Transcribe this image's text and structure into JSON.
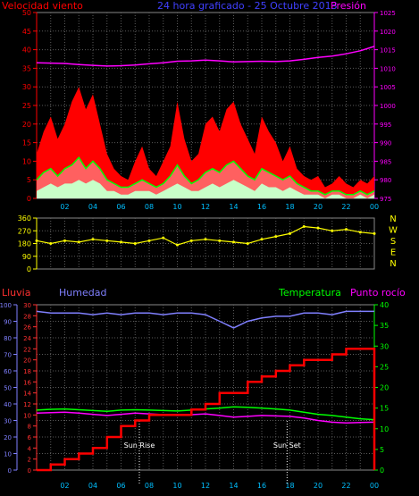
{
  "chart_data": [
    {
      "type": "line",
      "header": {
        "title": "24 hora graficado - 25 Octubre 2013",
        "left_label": "Velocidad viento",
        "right_label": "Presión"
      },
      "x_ticks": [
        "02",
        "04",
        "06",
        "08",
        "10",
        "12",
        "14",
        "16",
        "18",
        "20",
        "22",
        "00"
      ],
      "x_range": [
        0,
        24
      ],
      "y_left": {
        "range": [
          0,
          50
        ],
        "ticks": [
          0,
          5,
          10,
          15,
          20,
          25,
          30,
          35,
          40,
          45,
          50
        ]
      },
      "y_right": {
        "range": [
          975,
          1025
        ],
        "ticks": [
          975,
          980,
          985,
          990,
          995,
          1000,
          1005,
          1010,
          1015,
          1020,
          1025
        ]
      },
      "colors": {
        "gust": "#ff0000",
        "average": "#00ff00",
        "minimum": "#c8ffc8",
        "pressure": "#ff00ff",
        "lull": "#000000"
      },
      "grid": true,
      "series": [
        {
          "key": "pressure",
          "x": [
            0,
            1,
            2,
            3,
            4,
            5,
            6,
            7,
            8,
            9,
            10,
            11,
            12,
            13,
            14,
            15,
            16,
            17,
            18,
            19,
            20,
            21,
            22,
            23,
            24
          ],
          "values": [
            1011.5,
            1011.4,
            1011.3,
            1011.0,
            1010.8,
            1010.6,
            1010.7,
            1010.9,
            1011.2,
            1011.5,
            1011.9,
            1012.0,
            1012.2,
            1012.0,
            1011.7,
            1011.8,
            1011.9,
            1011.8,
            1012.0,
            1012.4,
            1012.9,
            1013.3,
            1013.9,
            1014.7,
            1015.9
          ]
        },
        {
          "key": "gust",
          "x": [
            0,
            0.5,
            1,
            1.5,
            2,
            2.5,
            3,
            3.5,
            4,
            4.5,
            5,
            5.5,
            6,
            6.5,
            7,
            7.5,
            8,
            8.5,
            9,
            9.5,
            10,
            10.5,
            11,
            11.5,
            12,
            12.5,
            13,
            13.5,
            14,
            14.5,
            15,
            15.5,
            16,
            16.5,
            17,
            17.5,
            18,
            18.5,
            19,
            19.5,
            20,
            20.5,
            21,
            21.5,
            22,
            22.5,
            23,
            23.5,
            24
          ],
          "values": [
            12,
            18,
            22,
            16,
            20,
            26,
            30,
            24,
            28,
            20,
            12,
            8,
            6,
            5,
            10,
            14,
            8,
            6,
            10,
            14,
            26,
            16,
            10,
            12,
            20,
            22,
            18,
            24,
            26,
            20,
            16,
            12,
            22,
            18,
            15,
            10,
            14,
            8,
            6,
            5,
            6,
            3,
            4,
            6,
            4,
            3,
            5,
            4,
            6
          ]
        },
        {
          "key": "average",
          "x": [
            0,
            0.5,
            1,
            1.5,
            2,
            2.5,
            3,
            3.5,
            4,
            4.5,
            5,
            5.5,
            6,
            6.5,
            7,
            7.5,
            8,
            8.5,
            9,
            9.5,
            10,
            10.5,
            11,
            11.5,
            12,
            12.5,
            13,
            13.5,
            14,
            14.5,
            15,
            15.5,
            16,
            16.5,
            17,
            17.5,
            18,
            18.5,
            19,
            19.5,
            20,
            20.5,
            21,
            21.5,
            22,
            22.5,
            23,
            23.5,
            24
          ],
          "values": [
            5,
            7,
            8,
            6,
            8,
            9,
            11,
            8,
            10,
            8,
            5,
            4,
            3,
            3,
            4,
            5,
            4,
            3,
            4,
            6,
            9,
            6,
            4,
            5,
            7,
            8,
            7,
            9,
            10,
            8,
            6,
            5,
            8,
            7,
            6,
            5,
            6,
            4,
            3,
            2,
            2,
            1,
            2,
            2,
            1,
            1,
            2,
            1,
            2
          ]
        },
        {
          "key": "minimum",
          "x": [
            0,
            0.5,
            1,
            1.5,
            2,
            2.5,
            3,
            3.5,
            4,
            4.5,
            5,
            5.5,
            6,
            6.5,
            7,
            7.5,
            8,
            8.5,
            9,
            9.5,
            10,
            10.5,
            11,
            11.5,
            12,
            12.5,
            13,
            13.5,
            14,
            14.5,
            15,
            15.5,
            16,
            16.5,
            17,
            17.5,
            18,
            18.5,
            19,
            19.5,
            20,
            20.5,
            21,
            21.5,
            22,
            22.5,
            23,
            23.5,
            24
          ],
          "values": [
            2,
            3,
            4,
            3,
            4,
            4,
            5,
            4,
            5,
            4,
            2,
            2,
            1,
            1,
            2,
            2,
            2,
            1,
            2,
            3,
            4,
            3,
            2,
            2,
            3,
            4,
            3,
            4,
            5,
            4,
            3,
            2,
            4,
            3,
            3,
            2,
            3,
            2,
            1,
            1,
            1,
            0,
            1,
            1,
            0,
            0,
            1,
            0,
            1
          ]
        }
      ]
    },
    {
      "type": "scatter",
      "x_range": [
        0,
        24
      ],
      "y_range": [
        0,
        360
      ],
      "y_ticks": [
        0,
        90,
        180,
        270,
        360
      ],
      "compass_labels": [
        "N",
        "W",
        "S",
        "E",
        "N"
      ],
      "colors": {
        "direction": "#ffff00"
      },
      "grid": true,
      "series": [
        {
          "key": "direction",
          "x": [
            0,
            1,
            2,
            3,
            4,
            5,
            6,
            7,
            8,
            9,
            10,
            11,
            12,
            13,
            14,
            15,
            16,
            17,
            18,
            19,
            20,
            21,
            22,
            23,
            24
          ],
          "values": [
            200,
            180,
            200,
            190,
            210,
            200,
            190,
            180,
            200,
            220,
            170,
            200,
            210,
            200,
            190,
            180,
            210,
            230,
            250,
            300,
            290,
            270,
            280,
            260,
            250
          ]
        }
      ]
    },
    {
      "type": "line",
      "header": {
        "rain_label": "Lluvia",
        "humidity_label": "Humedad",
        "temperature_label": "Temperatura",
        "dewpoint_label": "Punto rocío"
      },
      "x_ticks": [
        "02",
        "04",
        "06",
        "08",
        "10",
        "12",
        "14",
        "16",
        "18",
        "20",
        "22",
        "00"
      ],
      "x_range": [
        0,
        24
      ],
      "y_left_outer": {
        "range": [
          0,
          100
        ],
        "ticks": [
          0,
          10,
          20,
          30,
          40,
          50,
          60,
          70,
          80,
          90,
          100
        ]
      },
      "y_left_inner": {
        "range": [
          0,
          30
        ],
        "ticks": [
          0,
          2,
          4,
          6,
          8,
          10,
          12,
          14,
          16,
          18,
          20,
          22,
          24,
          26,
          28,
          30
        ]
      },
      "y_right": {
        "range": [
          0,
          40
        ],
        "ticks": [
          0,
          5,
          10,
          15,
          20,
          25,
          30,
          35,
          40
        ]
      },
      "annotations": [
        {
          "text": "Sun Rise",
          "x": 7.3
        },
        {
          "text": "Sun Set",
          "x": 17.8
        }
      ],
      "colors": {
        "rain": "#ff0000",
        "humidity": "#8080ff",
        "temperature": "#00ff00",
        "dewpoint": "#ff00ff"
      },
      "grid": true,
      "series": [
        {
          "key": "humidity",
          "x": [
            0,
            1,
            2,
            3,
            4,
            5,
            6,
            7,
            8,
            9,
            10,
            11,
            12,
            13,
            14,
            15,
            16,
            17,
            18,
            19,
            20,
            21,
            22,
            23,
            24
          ],
          "values": [
            96,
            95,
            95,
            95,
            94,
            95,
            94,
            95,
            95,
            94,
            95,
            95,
            94,
            90,
            86,
            90,
            92,
            93,
            93,
            95,
            95,
            94,
            96,
            96,
            96
          ]
        },
        {
          "key": "temperature",
          "x": [
            0,
            1,
            2,
            3,
            4,
            5,
            6,
            7,
            8,
            9,
            10,
            11,
            12,
            13,
            14,
            15,
            16,
            17,
            18,
            19,
            20,
            21,
            22,
            23,
            24
          ],
          "values": [
            14.5,
            14.7,
            14.8,
            14.6,
            14.4,
            14.2,
            14.5,
            14.6,
            14.5,
            14.4,
            14.3,
            14.5,
            14.8,
            15.0,
            15.3,
            15.2,
            15.0,
            14.8,
            14.5,
            14.0,
            13.5,
            13.2,
            12.8,
            12.4,
            12.2
          ]
        },
        {
          "key": "dewpoint",
          "x": [
            0,
            1,
            2,
            3,
            4,
            5,
            6,
            7,
            8,
            9,
            10,
            11,
            12,
            13,
            14,
            15,
            16,
            17,
            18,
            19,
            20,
            21,
            22,
            23,
            24
          ],
          "values": [
            13.8,
            13.9,
            14.0,
            13.8,
            13.5,
            13.2,
            13.5,
            13.8,
            13.6,
            13.4,
            13.2,
            13.4,
            13.6,
            13.2,
            12.8,
            13.0,
            13.2,
            13.1,
            13.0,
            12.6,
            12.0,
            11.6,
            11.4,
            11.5,
            11.6
          ]
        },
        {
          "key": "rain",
          "x": [
            0,
            1,
            2,
            3,
            4,
            5,
            6,
            7,
            8,
            9,
            10,
            11,
            12,
            13,
            14,
            15,
            16,
            17,
            18,
            19,
            20,
            21,
            22,
            23,
            23.9,
            24
          ],
          "values": [
            0,
            1,
            2,
            3,
            4,
            6,
            8,
            9,
            10,
            10,
            10,
            11,
            12,
            14,
            14,
            16,
            17,
            18,
            19,
            20,
            20,
            21,
            22,
            22,
            22,
            0
          ]
        }
      ]
    }
  ]
}
